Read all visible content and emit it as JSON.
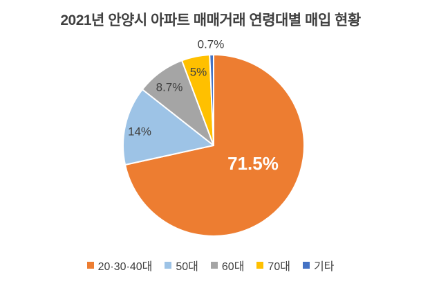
{
  "chart_data": {
    "type": "pie",
    "title": "2021년 안양시 아파트 매매거래 연령대별 매입 현황",
    "categories": [
      "20·30·40대",
      "50대",
      "60대",
      "70대",
      "기타"
    ],
    "values": [
      71.5,
      14,
      8.7,
      5,
      0.7
    ],
    "labels": [
      "71.5%",
      "14%",
      "8.7%",
      "5%",
      "0.7%"
    ],
    "colors": [
      "#ED7D31",
      "#9DC3E6",
      "#A5A5A5",
      "#FFC000",
      "#4472C4"
    ],
    "start_angle": 0,
    "direction": "clockwise",
    "legend_position": "bottom",
    "slice_border_color": "#FFFFFF",
    "text_color": "#404040",
    "big_label_color": "#FFFFFF",
    "background_color": "#FFFFFF"
  }
}
